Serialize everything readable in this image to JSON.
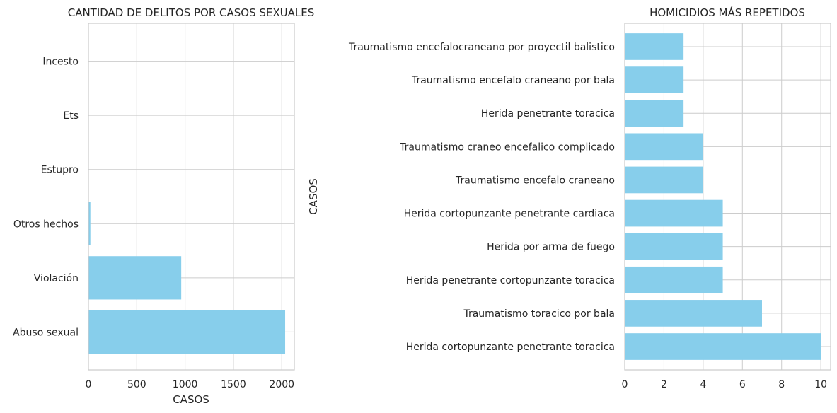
{
  "colors": {
    "bar": "#87ceeb",
    "grid": "#cccccc",
    "text": "#262626"
  },
  "chart_data": [
    {
      "type": "bar",
      "orientation": "horizontal",
      "title": "CANTIDAD DE DELITOS POR CASOS SEXUALES",
      "xlabel": "CASOS",
      "ylabel": "",
      "categories": [
        "Abuso sexual",
        "Violación",
        "Otros hechos",
        "Estupro",
        "Ets",
        "Incesto"
      ],
      "values": [
        2035,
        960,
        20,
        3,
        2,
        1
      ],
      "xlim": [
        0,
        2130
      ],
      "xticks": [
        0,
        500,
        1000,
        1500,
        2000
      ],
      "grid": true
    },
    {
      "type": "bar",
      "orientation": "horizontal",
      "title": "HOMICIDIOS MÁS REPETIDOS",
      "xlabel": "",
      "ylabel": "CASOS",
      "categories": [
        "Herida cortopunzante penetrante toracica",
        "Traumatismo toracico por bala",
        "Herida penetrante cortopunzante toracica",
        "Herida por arma de fuego",
        "Herida cortopunzante penetrante cardiaca",
        "Traumatismo encefalo craneano",
        "Traumatismo craneo encefalico complicado",
        "Herida penetrante toracica",
        "Traumatismo encefalo craneano por bala",
        "Traumatismo encefalocraneano por proyectil balistico"
      ],
      "values": [
        10,
        7,
        5,
        5,
        5,
        4,
        4,
        3,
        3,
        3
      ],
      "xlim": [
        0,
        10.5
      ],
      "xticks": [
        0,
        2,
        4,
        6,
        8,
        10
      ],
      "grid": true
    }
  ]
}
